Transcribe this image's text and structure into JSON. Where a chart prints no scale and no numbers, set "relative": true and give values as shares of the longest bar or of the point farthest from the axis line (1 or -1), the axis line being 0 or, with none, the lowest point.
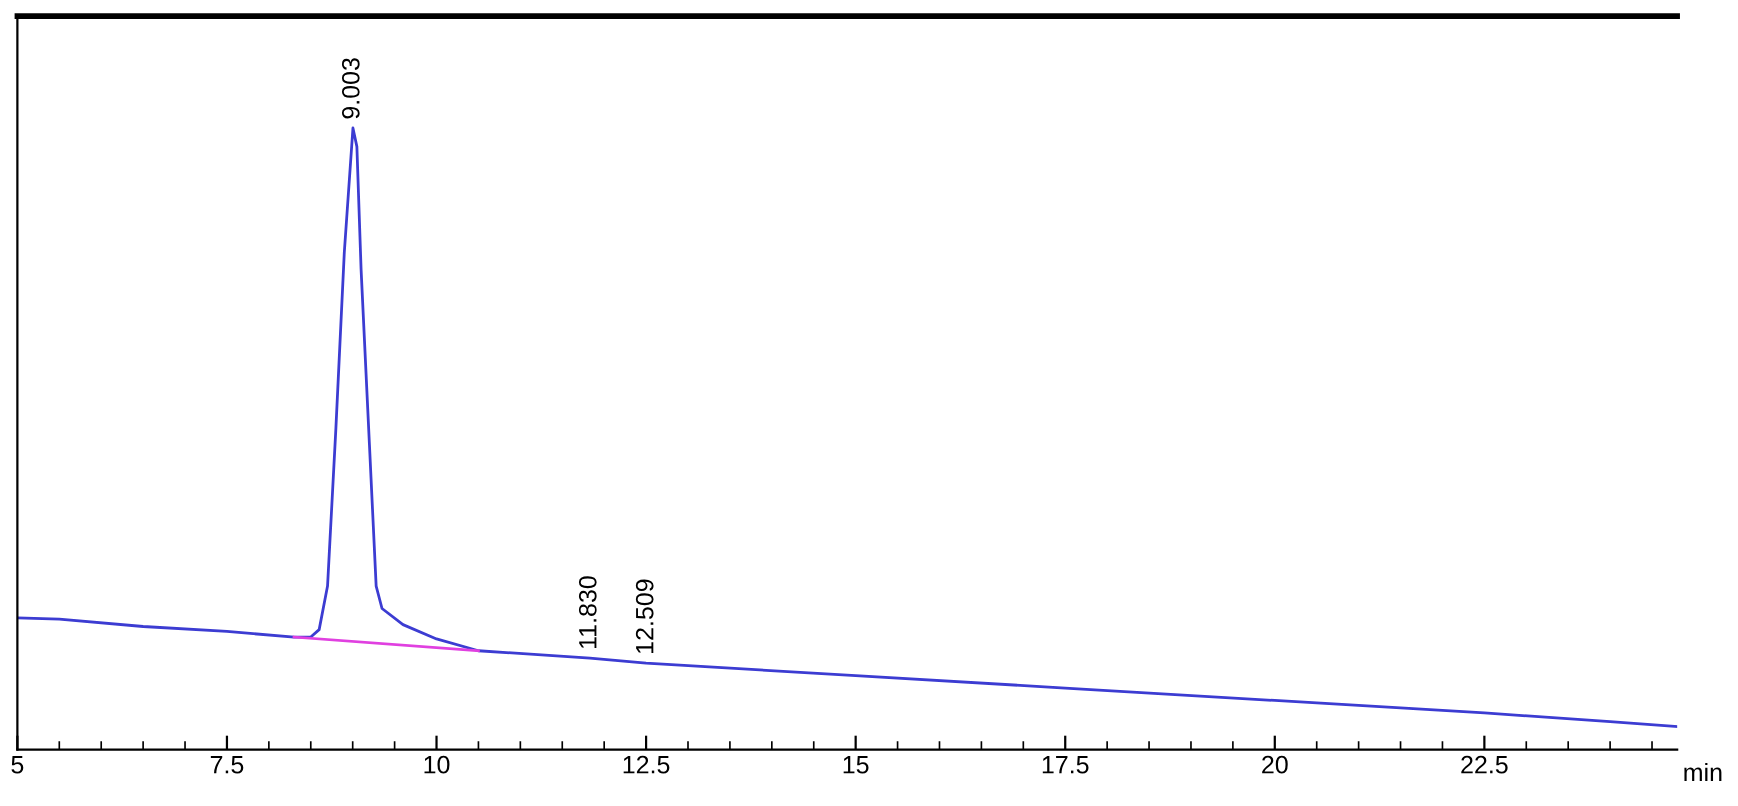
{
  "chart_data": {
    "type": "line",
    "relative": true,
    "xlabel": "min",
    "xlim": [
      5,
      24.8
    ],
    "xticks": [
      5,
      7.5,
      10,
      12.5,
      15,
      17.5,
      20,
      22.5
    ],
    "grid": false,
    "legend": false,
    "marker": "none",
    "line_style": "solid",
    "series": [
      {
        "color": "#3c3cd2",
        "x": [
          5.0,
          5.5,
          6.5,
          7.5,
          8.3,
          8.5,
          8.6,
          8.7,
          8.8,
          8.9,
          9.0,
          9.003,
          9.05,
          9.1,
          9.2,
          9.28,
          9.35,
          9.6,
          10.0,
          10.5,
          11.83,
          12.5,
          15,
          17.5,
          20,
          22.5,
          24.0,
          24.8
        ],
        "values": [
          0.212,
          0.21,
          0.198,
          0.19,
          0.181,
          0.181,
          0.193,
          0.263,
          0.518,
          0.8,
          0.994,
          1.0,
          0.97,
          0.773,
          0.49,
          0.263,
          0.227,
          0.201,
          0.178,
          0.159,
          0.147,
          0.139,
          0.119,
          0.099,
          0.079,
          0.059,
          0.045,
          0.037
        ]
      },
      {
        "color": "#e040e0",
        "x": [
          8.3,
          10.5
        ],
        "values": [
          0.181,
          0.159
        ]
      }
    ],
    "annotations": [
      {
        "text": "9.003",
        "x": 9.003,
        "y": 1.0
      },
      {
        "text": "11.830",
        "x": 11.83,
        "y": 0.147
      },
      {
        "text": "12.509",
        "x": 12.509,
        "y": 0.139
      }
    ]
  }
}
